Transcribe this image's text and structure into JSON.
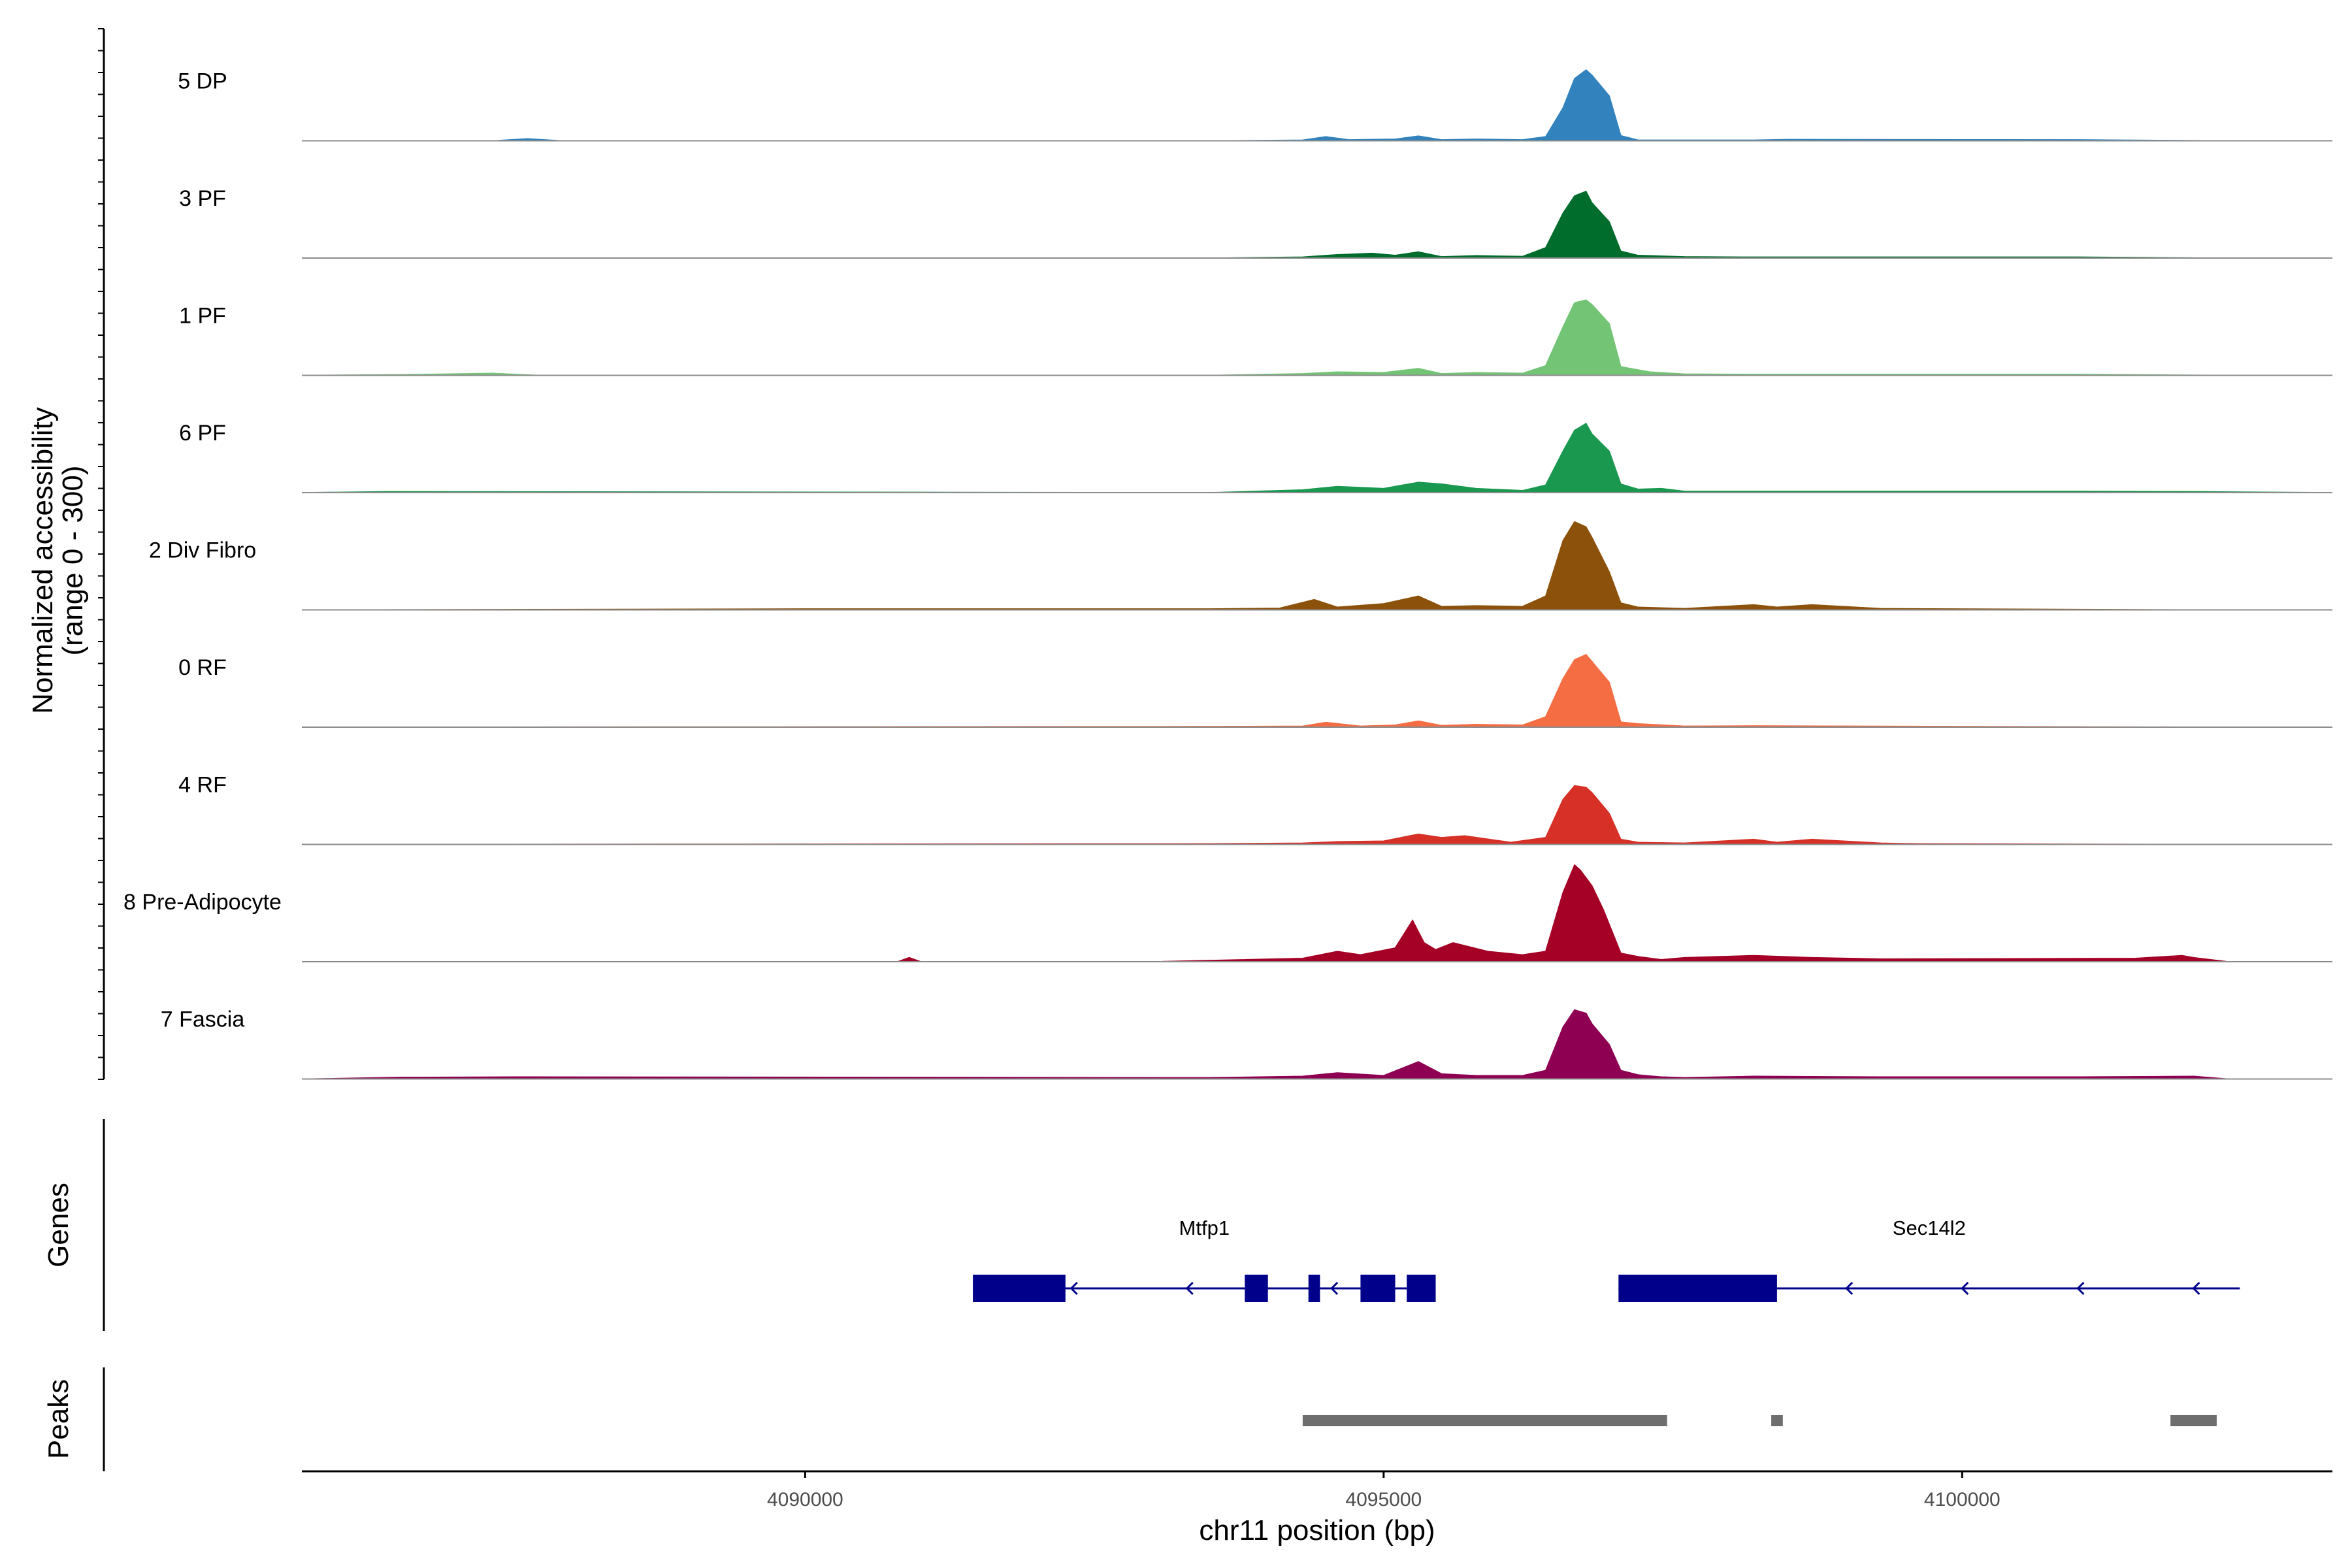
{
  "colors": {
    "gene": "#00008B",
    "peak": "#6E6E6E",
    "baseline": "#8C8C8C",
    "axis": "#000000"
  },
  "chart_data": {
    "type": "area",
    "title": "",
    "xlabel": "chr11 position (bp)",
    "ylabel_line1": "Normalized accessibility",
    "ylabel_line2": "(range 0 - 300)",
    "ylim": [
      0,
      300
    ],
    "xlim": [
      4085650,
      4103200
    ],
    "x_ticks": [
      {
        "value": 4090000,
        "label": "4090000"
      },
      {
        "value": 4095000,
        "label": "4095000"
      },
      {
        "value": 4100000,
        "label": "4100000"
      }
    ],
    "series": [
      {
        "name": "5 DP",
        "color": "#3182BD",
        "x": [
          4085650,
          4087000,
          4087300,
          4087600,
          4087900,
          4090000,
          4093500,
          4094300,
          4094500,
          4094700,
          4095100,
          4095300,
          4095500,
          4095800,
          4096200,
          4096400,
          4096550,
          4096650,
          4096750,
          4096800,
          4096950,
          4097050,
          4097200,
          4098200,
          4098500,
          4101000,
          4102300,
          4103200
        ],
        "values": [
          0,
          0,
          0,
          6,
          0,
          0,
          0,
          2,
          12,
          3,
          5,
          14,
          3,
          5,
          3,
          12,
          95,
          180,
          205,
          190,
          130,
          15,
          2,
          2,
          4,
          3,
          0,
          0
        ]
      },
      {
        "name": "3 PF",
        "color": "#006D2C",
        "x": [
          4085650,
          4089000,
          4093500,
          4094300,
          4094600,
          4094900,
          4095100,
          4095300,
          4095500,
          4095800,
          4096200,
          4096400,
          4096550,
          4096650,
          4096750,
          4096800,
          4096950,
          4097050,
          4097200,
          4097600,
          4098200,
          4101000,
          4102300,
          4103200
        ],
        "values": [
          0,
          0,
          0,
          3,
          10,
          14,
          8,
          18,
          4,
          7,
          5,
          30,
          130,
          180,
          193,
          160,
          105,
          20,
          8,
          4,
          3,
          3,
          0,
          0
        ]
      },
      {
        "name": "1 PF",
        "color": "#74C476",
        "x": [
          4085650,
          4086500,
          4087300,
          4087700,
          4093500,
          4094300,
          4094600,
          4095000,
          4095300,
          4095500,
          4095800,
          4096200,
          4096400,
          4096550,
          4096650,
          4096750,
          4096800,
          4096950,
          4097050,
          4097300,
          4097600,
          4098200,
          4101000,
          4102300,
          4103200
        ],
        "values": [
          0,
          2,
          6,
          0,
          0,
          5,
          10,
          8,
          20,
          5,
          8,
          6,
          28,
          140,
          210,
          218,
          205,
          150,
          25,
          10,
          4,
          3,
          3,
          0,
          0
        ]
      },
      {
        "name": "6 PF",
        "color": "#1A9850",
        "x": [
          4085650,
          4086400,
          4093500,
          4094300,
          4094600,
          4095000,
          4095300,
          4095500,
          4095800,
          4096200,
          4096400,
          4096550,
          4096650,
          4096750,
          4096800,
          4096950,
          4097050,
          4097200,
          4097400,
          4097600,
          4098200,
          4101000,
          4102000,
          4103200
        ],
        "values": [
          0,
          3,
          0,
          8,
          18,
          12,
          30,
          25,
          12,
          6,
          22,
          120,
          180,
          200,
          170,
          120,
          25,
          10,
          12,
          4,
          4,
          4,
          3,
          0
        ]
      },
      {
        "name": "2 Div Fibro",
        "color": "#8C510A",
        "x": [
          4085650,
          4090000,
          4093500,
          4094100,
          4094400,
          4094600,
          4095000,
          4095300,
          4095500,
          4095800,
          4096200,
          4096400,
          4096550,
          4096650,
          4096750,
          4096800,
          4096950,
          4097050,
          4097200,
          4097600,
          4098200,
          4098400,
          4098700,
          4099300,
          4102300,
          4103200
        ],
        "values": [
          0,
          3,
          3,
          5,
          30,
          8,
          18,
          40,
          10,
          12,
          10,
          40,
          200,
          255,
          240,
          210,
          110,
          20,
          8,
          4,
          15,
          8,
          15,
          4,
          0,
          0
        ]
      },
      {
        "name": "0 RF",
        "color": "#F46D43",
        "x": [
          4085650,
          4093500,
          4094300,
          4094500,
          4094800,
          4095100,
          4095300,
          4095500,
          4095800,
          4096200,
          4096400,
          4096550,
          4096650,
          4096750,
          4096800,
          4096950,
          4097050,
          4097200,
          4097600,
          4098200,
          4102300,
          4103200
        ],
        "values": [
          0,
          2,
          3,
          14,
          3,
          6,
          18,
          5,
          8,
          6,
          30,
          140,
          195,
          210,
          190,
          130,
          15,
          10,
          3,
          4,
          0,
          0
        ]
      },
      {
        "name": "4 RF",
        "color": "#D73027",
        "x": [
          4085650,
          4093500,
          4094300,
          4094600,
          4095000,
          4095300,
          4095500,
          4095700,
          4096100,
          4096400,
          4096550,
          4096650,
          4096750,
          4096800,
          4096950,
          4097050,
          4097200,
          4097600,
          4098200,
          4098400,
          4098700,
          4099300,
          4099600,
          4102300,
          4103200
        ],
        "values": [
          0,
          2,
          4,
          8,
          10,
          30,
          20,
          25,
          6,
          20,
          130,
          170,
          165,
          150,
          90,
          15,
          6,
          4,
          15,
          6,
          15,
          4,
          2,
          0,
          0
        ]
      },
      {
        "name": "8 Pre-Adipocyte",
        "color": "#A50026",
        "x": [
          4085650,
          4090800,
          4090900,
          4091000,
          4093000,
          4094300,
          4094600,
          4094800,
          4095100,
          4095250,
          4095350,
          4095450,
          4095600,
          4095900,
          4096200,
          4096400,
          4096550,
          4096650,
          4096700,
          4096800,
          4096900,
          4097050,
          4097200,
          4097400,
          4097600,
          4098200,
          4098700,
          4099300,
          4101500,
          4101900,
          4102000,
          4102300,
          4103200
        ],
        "values": [
          0,
          0,
          12,
          0,
          0,
          10,
          30,
          20,
          40,
          120,
          55,
          35,
          55,
          30,
          20,
          30,
          200,
          280,
          265,
          220,
          150,
          25,
          15,
          6,
          12,
          18,
          12,
          8,
          10,
          18,
          12,
          0,
          0
        ]
      },
      {
        "name": "7 Fascia",
        "color": "#8E0152",
        "x": [
          4085650,
          4086500,
          4087500,
          4093500,
          4094300,
          4094600,
          4095000,
          4095300,
          4095500,
          4095800,
          4096200,
          4096400,
          4096550,
          4096650,
          4096750,
          4096800,
          4096950,
          4097050,
          4097200,
          4097400,
          4097600,
          4098200,
          4099300,
          4101000,
          4102000,
          4102300,
          4103200
        ],
        "values": [
          0,
          5,
          6,
          4,
          8,
          18,
          10,
          50,
          15,
          10,
          10,
          25,
          150,
          200,
          190,
          160,
          100,
          25,
          12,
          6,
          4,
          8,
          6,
          6,
          8,
          0,
          0
        ]
      }
    ],
    "genes_label": "Genes",
    "genes": [
      {
        "name": "Mtfp1",
        "strand": "-",
        "start": 4091450,
        "end": 4095450,
        "exons": [
          [
            4091450,
            4092250
          ],
          [
            4093800,
            4094000
          ],
          [
            4094350,
            4094450
          ],
          [
            4094800,
            4095100
          ],
          [
            4095200,
            4095450
          ]
        ],
        "arrows": [
          4092300,
          4093300,
          4094550
        ]
      },
      {
        "name": "Sec14l2",
        "strand": "-",
        "start": 4097030,
        "end": 4102400,
        "exons": [
          [
            4097030,
            4098400
          ]
        ],
        "arrows": [
          4099000,
          4100000,
          4101000,
          4102000
        ]
      }
    ],
    "peaks_label": "Peaks",
    "peaks": [
      [
        4094300,
        4097450
      ],
      [
        4098350,
        4098450
      ],
      [
        4101800,
        4102200
      ]
    ]
  }
}
